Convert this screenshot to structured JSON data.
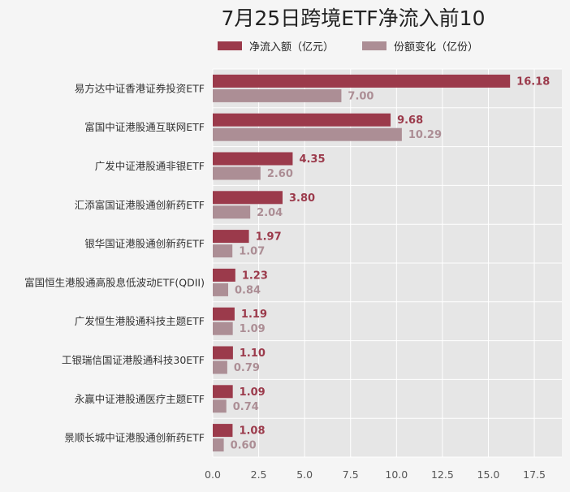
{
  "chart_data": {
    "type": "bar",
    "orientation": "horizontal",
    "title": "7月25日跨境ETF净流入前10",
    "categories": [
      "易方达中证香港证券投资ETF",
      "富国中证港股通互联网ETF",
      "广发中证港股通非银ETF",
      "汇添富国证港股通创新药ETF",
      "银华国证港股通创新药ETF",
      "富国恒生港股通高股息低波动ETF(QDII)",
      "广发恒生港股通科技主题ETF",
      "工银瑞信国证港股通科技30ETF",
      "永赢中证港股通医疗主题ETF",
      "景顺长城中证港股通创新药ETF"
    ],
    "series": [
      {
        "name": "净流入额（亿元）",
        "color": "#9b3a4b",
        "values": [
          16.18,
          9.68,
          4.35,
          3.8,
          1.97,
          1.23,
          1.19,
          1.1,
          1.09,
          1.08
        ],
        "labels": [
          "16.18",
          "9.68",
          "4.35",
          "3.80",
          "1.97",
          "1.23",
          "1.19",
          "1.10",
          "1.09",
          "1.08"
        ]
      },
      {
        "name": "份额变化（亿份）",
        "color": "#ac8e95",
        "values": [
          7.0,
          10.29,
          2.6,
          2.04,
          1.07,
          0.84,
          1.09,
          0.79,
          0.74,
          0.6
        ],
        "labels": [
          "7.00",
          "10.29",
          "2.60",
          "2.04",
          "1.07",
          "0.84",
          "1.09",
          "0.79",
          "0.74",
          "0.60"
        ]
      }
    ],
    "xlim": [
      0,
      19
    ],
    "xticks": [
      0,
      2.5,
      5,
      7.5,
      10,
      12.5,
      15,
      17.5
    ],
    "xtick_labels": [
      "0.0",
      "2.5",
      "5.0",
      "7.5",
      "10.0",
      "12.5",
      "15.0",
      "17.5"
    ],
    "grid": true,
    "legend_position": "top"
  }
}
